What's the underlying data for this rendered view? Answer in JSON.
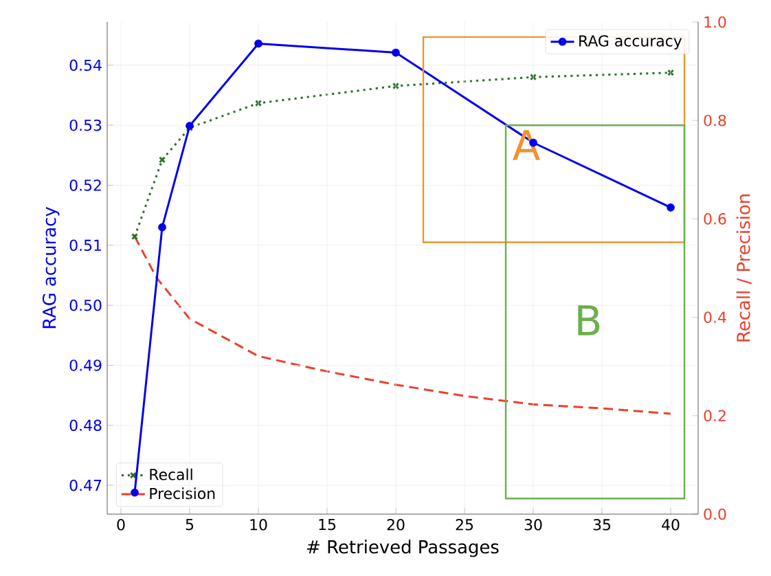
{
  "chart_data": {
    "type": "line",
    "xlabel": "# Retrieved Passages",
    "ylabel": "RAG accuracy",
    "y2label": "Recall / Precision",
    "x": [
      1,
      3,
      5,
      10,
      20,
      30,
      40
    ],
    "series": [
      {
        "name": "RAG accuracy",
        "color": "#0000ee",
        "marker": "circle",
        "line_style": "solid",
        "values": [
          0.4688,
          0.513,
          0.5299,
          0.5436,
          0.5421,
          0.5271,
          0.5163
        ]
      },
      {
        "name": "Recall",
        "color": "#2f6f2f",
        "axis": "y2",
        "marker": "cross",
        "line_style": "dotted",
        "values": [
          0.564,
          0.72,
          0.785,
          0.835,
          0.87,
          0.888,
          0.897
        ]
      },
      {
        "name": "Precision",
        "color": "#e8412c",
        "axis": "y2",
        "marker": "none",
        "line_style": "dashed",
        "x": [
          1,
          2.6,
          5,
          10,
          15,
          20,
          25,
          30,
          35,
          40
        ],
        "values": [
          0.564,
          0.48,
          0.397,
          0.321,
          0.29,
          0.263,
          0.24,
          0.223,
          0.215,
          0.204
        ]
      }
    ],
    "xlim": [
      -1,
      42
    ],
    "xticks": [
      0,
      5,
      10,
      15,
      20,
      25,
      30,
      35,
      40
    ],
    "ylim": [
      0.4652,
      0.5472
    ],
    "yticks": [
      0.47,
      0.48,
      0.49,
      {
        "value": 0.5,
        "label": "0.50"
      },
      0.51,
      0.52,
      0.53,
      0.54
    ],
    "y2lim": [
      0,
      1
    ],
    "y2ticks": [
      {
        "value": 0,
        "label": "0.0"
      },
      {
        "value": 0.2,
        "label": "0.2"
      },
      {
        "value": 0.4,
        "label": "0.4"
      },
      {
        "value": 0.6,
        "label": "0.6"
      },
      {
        "value": 0.8,
        "label": "0.8"
      },
      {
        "value": 1,
        "label": "1.0"
      }
    ],
    "grid": true,
    "legend": "top right",
    "annotations": [
      "A",
      "B"
    ]
  }
}
